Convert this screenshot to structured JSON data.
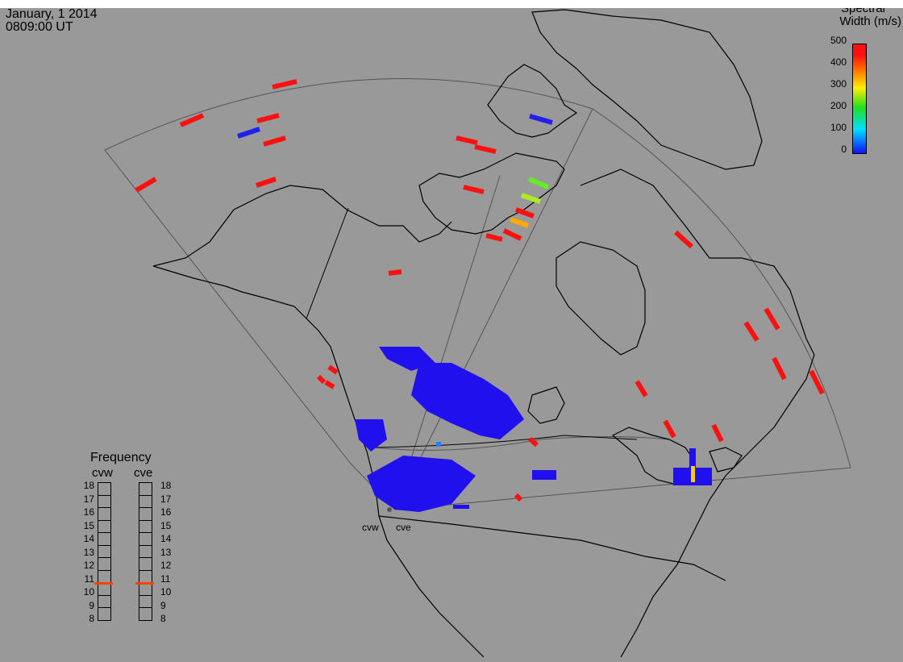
{
  "header": {
    "date": "January, 1 2014",
    "time": "0809:00 UT"
  },
  "colorbar": {
    "title_line1": "Spectral",
    "title_line2": "Width (m/s)",
    "ticks": [
      "500",
      "400",
      "300",
      "200",
      "100",
      "0"
    ],
    "colors": {
      "low": "#1010ff",
      "mid": "#20e020",
      "high": "#ff1010"
    }
  },
  "frequency_panel": {
    "title": "Frequency",
    "radars": [
      "cvw",
      "cve"
    ],
    "levels": [
      "18",
      "17",
      "16",
      "15",
      "14",
      "13",
      "12",
      "11",
      "10",
      "9",
      "8"
    ],
    "current_value": 10.8
  },
  "radars": [
    {
      "name": "cvw"
    },
    {
      "name": "cve"
    }
  ]
}
